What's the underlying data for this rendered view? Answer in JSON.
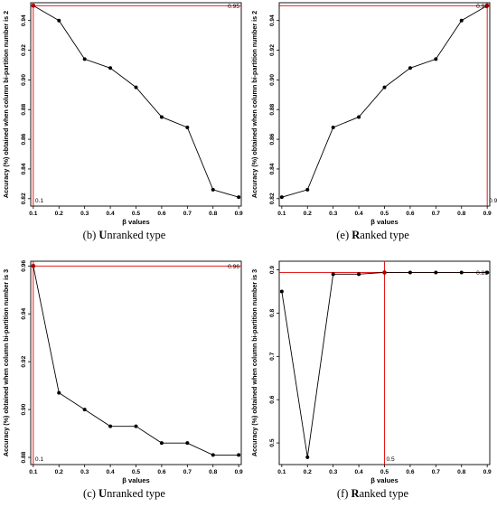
{
  "chart_data": [
    {
      "id": "b",
      "type": "line",
      "caption_letter": "(b)",
      "caption_text": "Unranked type",
      "xlabel": "β values",
      "ylabel": "Accuracy (%) obtained when column bi-partition number is 2",
      "x": [
        0.1,
        0.2,
        0.3,
        0.4,
        0.5,
        0.6,
        0.7,
        0.8,
        0.9
      ],
      "x_ticks": [
        "0.1",
        "0.2",
        "0.3",
        "0.4",
        "0.5",
        "0.6",
        "0.7",
        "0.8",
        "0.9"
      ],
      "values": [
        0.95,
        0.94,
        0.914,
        0.908,
        0.895,
        0.875,
        0.868,
        0.826,
        0.821
      ],
      "y_ticks": [
        "0.82",
        "0.84",
        "0.86",
        "0.88",
        "0.90",
        "0.92",
        "0.94"
      ],
      "y_tick_values": [
        0.82,
        0.84,
        0.86,
        0.88,
        0.9,
        0.92,
        0.94
      ],
      "ylim": [
        0.815,
        0.952
      ],
      "xlim": [
        0.09,
        0.91
      ],
      "max_marker": {
        "x": 0.1,
        "y": 0.95,
        "x_label": "0.1",
        "y_label": "0.95",
        "color": "#e00000"
      },
      "grid": false
    },
    {
      "id": "e",
      "type": "line",
      "caption_letter": "(e)",
      "caption_text": "Ranked type",
      "xlabel": "β values",
      "ylabel": "Accuracy (%) obtained when column bi-partition number is 2",
      "x": [
        0.1,
        0.2,
        0.3,
        0.4,
        0.5,
        0.6,
        0.7,
        0.8,
        0.9
      ],
      "x_ticks": [
        "0.1",
        "0.2",
        "0.3",
        "0.4",
        "0.5",
        "0.6",
        "0.7",
        "0.8",
        "0.9"
      ],
      "values": [
        0.821,
        0.826,
        0.868,
        0.875,
        0.895,
        0.908,
        0.914,
        0.94,
        0.95
      ],
      "y_ticks": [
        "0.82",
        "0.84",
        "0.86",
        "0.88",
        "0.90",
        "0.92",
        "0.94"
      ],
      "y_tick_values": [
        0.82,
        0.84,
        0.86,
        0.88,
        0.9,
        0.92,
        0.94
      ],
      "ylim": [
        0.815,
        0.952
      ],
      "xlim": [
        0.09,
        0.91
      ],
      "max_marker": {
        "x": 0.9,
        "y": 0.95,
        "x_label": "0.9",
        "y_label": "0.95",
        "color": "#e00000"
      },
      "grid": false
    },
    {
      "id": "c",
      "type": "line",
      "caption_letter": "(c)",
      "caption_text": "Unranked type",
      "xlabel": "β values",
      "ylabel": "Accuracy (%) obtained when column bi-partition number is 3",
      "x": [
        0.1,
        0.2,
        0.3,
        0.4,
        0.5,
        0.6,
        0.7,
        0.8,
        0.9
      ],
      "x_ticks": [
        "0.1",
        "0.2",
        "0.3",
        "0.4",
        "0.5",
        "0.6",
        "0.7",
        "0.8",
        "0.9"
      ],
      "values": [
        0.96,
        0.907,
        0.9,
        0.893,
        0.893,
        0.886,
        0.886,
        0.881,
        0.881
      ],
      "y_ticks": [
        "0.88",
        "0.90",
        "0.92",
        "0.94",
        "0.96"
      ],
      "y_tick_values": [
        0.88,
        0.9,
        0.92,
        0.94,
        0.96
      ],
      "ylim": [
        0.877,
        0.962
      ],
      "xlim": [
        0.09,
        0.91
      ],
      "max_marker": {
        "x": 0.1,
        "y": 0.96,
        "x_label": "0.1",
        "y_label": "0.96",
        "color": "#e00000"
      },
      "grid": false
    },
    {
      "id": "f",
      "type": "line",
      "caption_letter": "(f)",
      "caption_text": "Ranked type",
      "xlabel": "β values",
      "ylabel": "Accuracy (%) obtained when column bi-partition number is 3",
      "x": [
        0.1,
        0.2,
        0.3,
        0.4,
        0.5,
        0.6,
        0.7,
        0.8,
        0.9
      ],
      "x_ticks": [
        "0.1",
        "0.2",
        "0.3",
        "0.4",
        "0.5",
        "0.6",
        "0.7",
        "0.8",
        "0.9"
      ],
      "values": [
        0.85,
        0.467,
        0.89,
        0.89,
        0.894,
        0.894,
        0.894,
        0.894,
        0.894
      ],
      "y_ticks": [
        "0.5",
        "0.6",
        "0.7",
        "0.8",
        "0.9"
      ],
      "y_tick_values": [
        0.5,
        0.6,
        0.7,
        0.8,
        0.9
      ],
      "ylim": [
        0.45,
        0.92
      ],
      "xlim": [
        0.09,
        0.91
      ],
      "max_marker": {
        "x": 0.5,
        "y": 0.894,
        "x_label": "0.5",
        "y_label": "0.89",
        "color": "#e00000"
      },
      "grid": false
    }
  ]
}
